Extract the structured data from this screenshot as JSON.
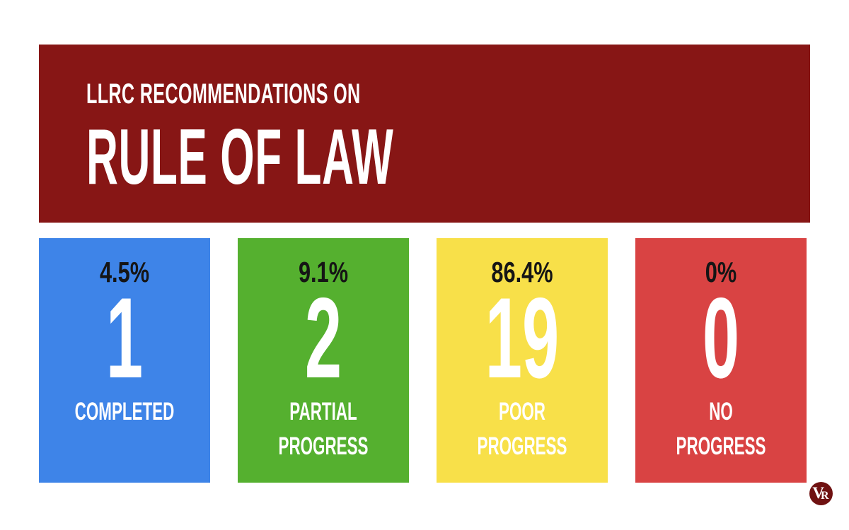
{
  "canvas": {
    "background": "#ffffff"
  },
  "header": {
    "kicker": "LLRC RECOMMENDATIONS ON",
    "title": "RULE OF LAW",
    "background": "#871615",
    "text_color": "#ffffff"
  },
  "cards": [
    {
      "key": "completed",
      "percent": "4.5%",
      "count": "1",
      "label": "COMPLETED",
      "color": "#3e84e8",
      "percent_color": "#151515",
      "text_color": "#ffffff"
    },
    {
      "key": "partial-progress",
      "percent": "9.1%",
      "count": "2",
      "label": "PARTIAL PROGRESS",
      "color": "#55b02f",
      "percent_color": "#151515",
      "text_color": "#ffffff"
    },
    {
      "key": "poor-progress",
      "percent": "86.4%",
      "count": "19",
      "label": "POOR PROGRESS",
      "color": "#f8e049",
      "percent_color": "#151515",
      "text_color": "#ffffff"
    },
    {
      "key": "no-progress",
      "percent": "0%",
      "count": "0",
      "label": "NO PROGRESS",
      "color": "#d94343",
      "percent_color": "#151515",
      "text_color": "#ffffff"
    }
  ],
  "logo": {
    "letter_v": "V",
    "letter_r": "R",
    "background": "#6f1111",
    "text_color": "#ffffff"
  },
  "chart_data": {
    "type": "table",
    "title": "LLRC Recommendations on Rule of Law",
    "categories": [
      "Completed",
      "Partial Progress",
      "Poor Progress",
      "No Progress"
    ],
    "series": [
      {
        "name": "Count",
        "values": [
          1,
          2,
          19,
          0
        ]
      },
      {
        "name": "Percent",
        "values": [
          4.5,
          9.1,
          86.4,
          0
        ]
      }
    ],
    "colors": [
      "#3e84e8",
      "#55b02f",
      "#f8e049",
      "#d94343"
    ],
    "legend_position": "none",
    "grid": false
  }
}
